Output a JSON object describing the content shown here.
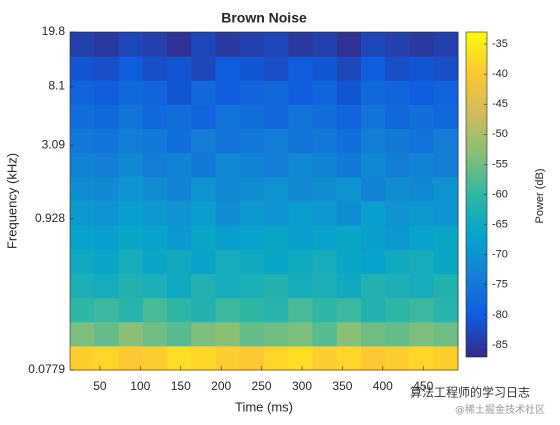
{
  "chart_data": {
    "type": "heatmap",
    "title": "Brown Noise",
    "xlabel": "Time (ms)",
    "ylabel": "Frequency (kHz)",
    "colorbar_label": "Power (dB)",
    "xlim": [
      13,
      493
    ],
    "xticks": [
      50,
      100,
      150,
      200,
      250,
      300,
      350,
      400,
      450
    ],
    "ylim": [
      0.0779,
      19.8
    ],
    "yticks": [
      0.0779,
      0.928,
      3.09,
      8.1,
      19.8
    ],
    "yscale": "log",
    "clim": [
      -87,
      -33
    ],
    "cticks": [
      -35,
      -40,
      -45,
      -50,
      -55,
      -60,
      -65,
      -70,
      -75,
      -80,
      -85
    ],
    "colormap": [
      "#352a87",
      "#0f5cdd",
      "#1481d6",
      "#06a4ca",
      "#2eb7a4",
      "#87bf77",
      "#d1bb59",
      "#fec832",
      "#f9fb0e"
    ],
    "z": [
      [
        -39,
        -38,
        -40,
        -39,
        -37,
        -38,
        -39,
        -40,
        -38,
        -37,
        -39,
        -38,
        -40,
        -39,
        -38,
        -39
      ],
      [
        -54,
        -56,
        -53,
        -55,
        -57,
        -54,
        -53,
        -56,
        -55,
        -54,
        -57,
        -53,
        -55,
        -56,
        -54,
        -55
      ],
      [
        -60,
        -59,
        -61,
        -58,
        -60,
        -62,
        -59,
        -60,
        -61,
        -58,
        -60,
        -59,
        -62,
        -60,
        -59,
        -61
      ],
      [
        -63,
        -64,
        -62,
        -63,
        -65,
        -62,
        -64,
        -63,
        -62,
        -64,
        -63,
        -65,
        -62,
        -63,
        -64,
        -62
      ],
      [
        -65,
        -66,
        -64,
        -66,
        -65,
        -67,
        -64,
        -65,
        -66,
        -65,
        -64,
        -66,
        -67,
        -65,
        -64,
        -66
      ],
      [
        -67,
        -68,
        -66,
        -67,
        -69,
        -66,
        -68,
        -67,
        -66,
        -68,
        -67,
        -66,
        -68,
        -69,
        -67,
        -66
      ],
      [
        -69,
        -70,
        -68,
        -69,
        -70,
        -68,
        -71,
        -69,
        -70,
        -68,
        -69,
        -71,
        -68,
        -70,
        -69,
        -70
      ],
      [
        -71,
        -72,
        -70,
        -71,
        -73,
        -70,
        -72,
        -71,
        -70,
        -72,
        -71,
        -70,
        -73,
        -71,
        -72,
        -70
      ],
      [
        -73,
        -74,
        -72,
        -74,
        -73,
        -75,
        -72,
        -73,
        -74,
        -72,
        -73,
        -75,
        -72,
        -74,
        -73,
        -74
      ],
      [
        -75,
        -76,
        -74,
        -75,
        -77,
        -74,
        -76,
        -75,
        -74,
        -76,
        -75,
        -77,
        -74,
        -75,
        -76,
        -74
      ],
      [
        -77,
        -78,
        -76,
        -78,
        -77,
        -79,
        -76,
        -77,
        -78,
        -76,
        -77,
        -79,
        -76,
        -78,
        -77,
        -78
      ],
      [
        -79,
        -80,
        -78,
        -79,
        -81,
        -78,
        -80,
        -79,
        -78,
        -80,
        -79,
        -81,
        -78,
        -79,
        -80,
        -79
      ],
      [
        -81,
        -82,
        -80,
        -82,
        -81,
        -83,
        -80,
        -81,
        -82,
        -80,
        -81,
        -83,
        -80,
        -82,
        -81,
        -82
      ],
      [
        -84,
        -85,
        -83,
        -84,
        -86,
        -83,
        -85,
        -84,
        -83,
        -85,
        -84,
        -86,
        -83,
        -84,
        -85,
        -84
      ]
    ],
    "watermark": [
      "算法工程师的学习日志",
      "@稀土掘金技术社区"
    ]
  }
}
